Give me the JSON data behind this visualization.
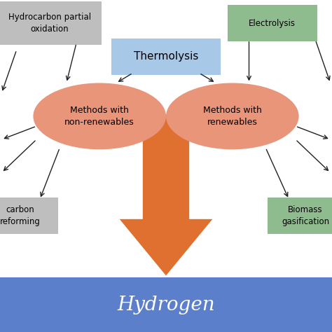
{
  "bg_color": "#ffffff",
  "hydrogen_bar_color": "#5b7fcb",
  "hydrogen_text": "Hydrogen",
  "hydrogen_text_color": "#ffffff",
  "thermolysis_box_color": "#a8c8e8",
  "thermolysis_text": "Thermolysis",
  "ellipse_color": "#e8957a",
  "ellipse_left_text": "Methods with\nnon-renewables",
  "ellipse_right_text": "Methods with\nrenewables",
  "arrow_color": "#e07030",
  "gray_box_color": "#bebebe",
  "green_box_color": "#8fbc8f",
  "box_topleft_text": "Hydrocarbon partial\noxidation",
  "box_topright_text": "Electrolysis",
  "box_bottomleft_text": "carbon\nreforming",
  "box_bottomright_text": "Biomass\ngasification",
  "line_color": "#222222",
  "figsize": [
    4.74,
    4.74
  ],
  "dpi": 100,
  "xlim": [
    0,
    10
  ],
  "ylim": [
    0,
    10
  ]
}
